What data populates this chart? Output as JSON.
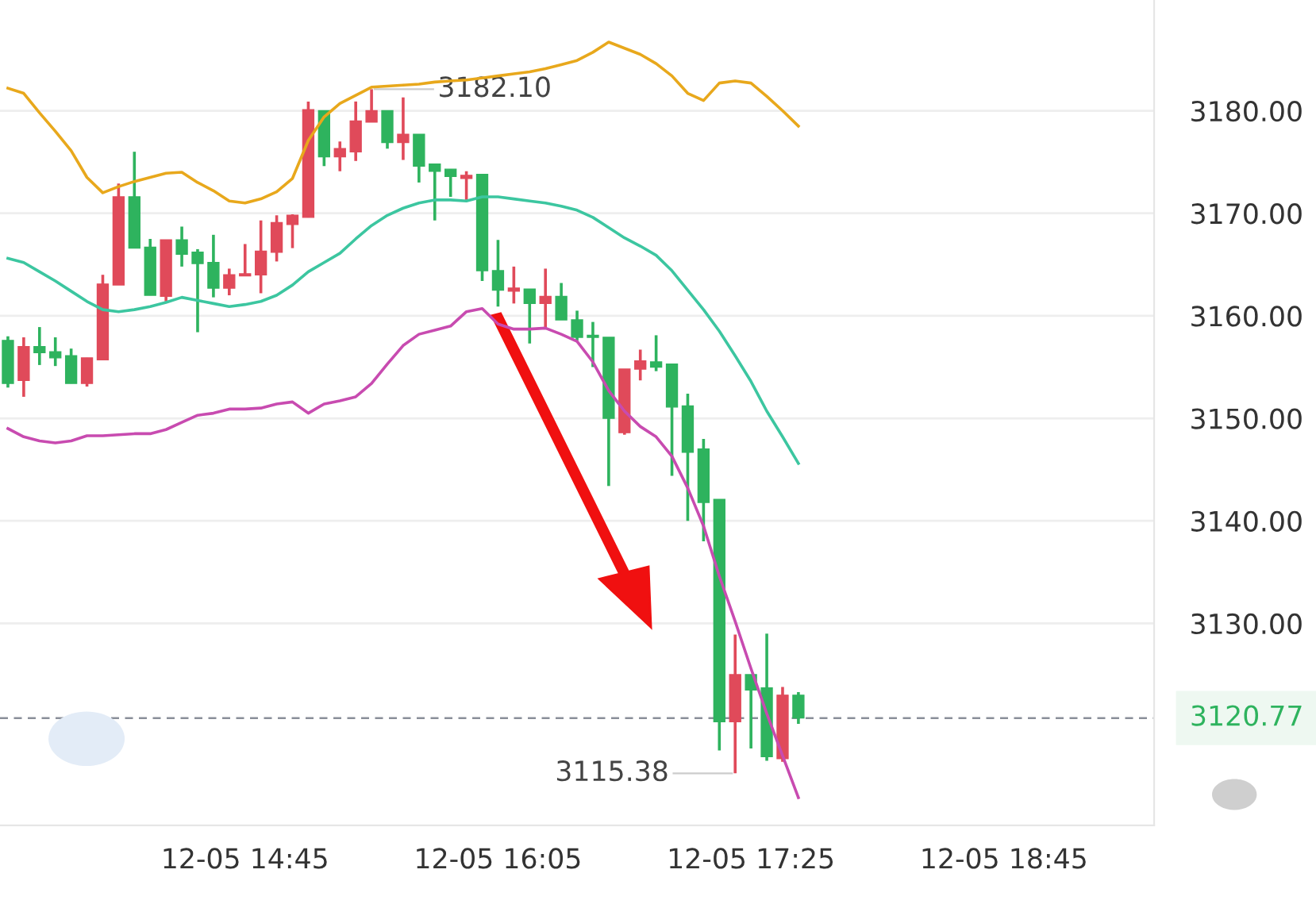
{
  "chart_data": {
    "type": "candlestick",
    "categories": [
      null,
      null,
      null,
      null,
      null,
      null,
      null,
      null,
      null,
      null,
      null,
      null,
      null,
      null,
      null,
      "12-05 14:45",
      null,
      null,
      null,
      null,
      null,
      null,
      null,
      null,
      null,
      null,
      null,
      null,
      null,
      null,
      null,
      "12-05 16:05",
      null,
      null,
      null,
      null,
      null,
      null,
      null,
      null,
      null,
      null,
      null,
      null,
      null,
      null,
      null,
      "12-05 17:25",
      null,
      null,
      null,
      null,
      null,
      null,
      null,
      null,
      null,
      null,
      null,
      null,
      null,
      null,
      null,
      "12-05 18:45",
      null,
      null,
      null,
      null,
      null,
      null,
      null,
      null,
      null
    ],
    "ohlc": [
      [
        3157.6,
        3158.0,
        3153.0,
        3153.4
      ],
      [
        3153.7,
        3157.9,
        3152.1,
        3157.0
      ],
      [
        3157.0,
        3158.9,
        3155.2,
        3156.4
      ],
      [
        3156.5,
        3157.9,
        3155.1,
        3155.9
      ],
      [
        3156.1,
        3156.8,
        3153.4,
        3153.4
      ],
      [
        3153.4,
        3155.9,
        3153.1,
        3155.9
      ],
      [
        3155.7,
        3164.0,
        3155.7,
        3163.1
      ],
      [
        3163.0,
        3172.9,
        3163.0,
        3171.6
      ],
      [
        3171.6,
        3176.0,
        3166.6,
        3166.6
      ],
      [
        3166.7,
        3167.5,
        3162.0,
        3162.0
      ],
      [
        3161.9,
        3167.4,
        3161.4,
        3167.4
      ],
      [
        3167.4,
        3168.7,
        3164.8,
        3166.0
      ],
      [
        3166.2,
        3166.5,
        3158.4,
        3165.1
      ],
      [
        3165.2,
        3167.9,
        3161.8,
        3162.7
      ],
      [
        3162.7,
        3164.6,
        3162.0,
        3164.0
      ],
      [
        3163.9,
        3167.0,
        3163.9,
        3164.1
      ],
      [
        3164.0,
        3169.3,
        3162.2,
        3166.3
      ],
      [
        3166.2,
        3169.8,
        3165.3,
        3169.1
      ],
      [
        3168.9,
        3169.9,
        3166.6,
        3169.8
      ],
      [
        3169.6,
        3180.9,
        3169.6,
        3180.1
      ],
      [
        3180.0,
        3180.0,
        3174.6,
        3175.5
      ],
      [
        3175.5,
        3177.0,
        3174.1,
        3176.3
      ],
      [
        3176.0,
        3180.9,
        3175.1,
        3179.0
      ],
      [
        3178.9,
        3182.1,
        3178.9,
        3180.0
      ],
      [
        3180.0,
        3180.0,
        3176.3,
        3176.9
      ],
      [
        3176.9,
        3181.3,
        3175.2,
        3177.7
      ],
      [
        3177.7,
        3177.7,
        3173.0,
        3174.6
      ],
      [
        3174.8,
        3174.8,
        3169.3,
        3174.1
      ],
      [
        3174.3,
        3174.3,
        3171.6,
        3173.6
      ],
      [
        3173.4,
        3174.1,
        3171.3,
        3173.7
      ],
      [
        3173.8,
        3173.8,
        3163.4,
        3164.4
      ],
      [
        3164.4,
        3167.4,
        3160.9,
        3162.5
      ],
      [
        3162.4,
        3164.8,
        3161.2,
        3162.7
      ],
      [
        3162.6,
        3162.6,
        3157.3,
        3161.2
      ],
      [
        3161.2,
        3164.6,
        3158.8,
        3161.9
      ],
      [
        3161.9,
        3163.2,
        3159.6,
        3159.6
      ],
      [
        3159.6,
        3160.5,
        3157.6,
        3157.9
      ],
      [
        3158.1,
        3159.4,
        3155.0,
        3157.9
      ],
      [
        3157.9,
        3157.9,
        3143.4,
        3150.0
      ],
      [
        3148.6,
        3154.8,
        3148.4,
        3154.8
      ],
      [
        3154.8,
        3156.7,
        3153.7,
        3155.6
      ],
      [
        3155.5,
        3158.1,
        3154.6,
        3155.0
      ],
      [
        3155.3,
        3155.3,
        3144.4,
        3151.1
      ],
      [
        3151.2,
        3152.4,
        3140.0,
        3146.7
      ],
      [
        3147.0,
        3148.0,
        3138.0,
        3141.8
      ],
      [
        3142.1,
        3142.1,
        3117.6,
        3120.4
      ],
      [
        3120.4,
        3128.9,
        3115.38,
        3125.0
      ],
      [
        3125.0,
        3125.0,
        3117.8,
        3123.5
      ],
      [
        3123.7,
        3129.0,
        3116.6,
        3117.0
      ],
      [
        3116.8,
        3123.8,
        3116.5,
        3123.0
      ],
      [
        3123.0,
        3123.3,
        3120.2,
        3120.77
      ],
      null,
      null,
      null,
      null,
      null,
      null,
      null,
      null,
      null,
      null,
      null,
      null,
      null,
      null,
      null,
      null,
      null,
      null,
      null,
      null,
      null,
      null
    ],
    "colors": [
      "#2eb35e",
      "#e04a5a",
      "#2eb35e",
      "#2eb35e",
      "#2eb35e",
      "#e04a5a",
      "#e04a5a",
      "#e04a5a",
      "#2eb35e",
      "#2eb35e",
      "#e04a5a",
      "#2eb35e",
      "#2eb35e",
      "#2eb35e",
      "#e04a5a",
      "#e04a5a",
      "#e04a5a",
      "#e04a5a",
      "#e04a5a",
      "#e04a5a",
      "#2eb35e",
      "#e04a5a",
      "#e04a5a",
      "#e04a5a",
      "#2eb35e",
      "#e04a5a",
      "#2eb35e",
      "#2eb35e",
      "#2eb35e",
      "#e04a5a",
      "#2eb35e",
      "#2eb35e",
      "#e04a5a",
      "#2eb35e",
      "#e04a5a",
      "#2eb35e",
      "#2eb35e",
      "#2eb35e",
      "#2eb35e",
      "#e04a5a",
      "#e04a5a",
      "#2eb35e",
      "#2eb35e",
      "#2eb35e",
      "#2eb35e",
      "#2eb35e",
      "#e04a5a",
      "#2eb35e",
      "#2eb35e",
      "#e04a5a",
      "#2eb35e",
      null,
      null,
      null,
      null,
      null,
      null,
      null,
      null,
      null,
      null,
      null,
      null,
      null,
      null,
      null,
      null,
      null,
      null,
      null,
      null,
      null,
      null
    ],
    "series": [
      {
        "type": "line",
        "color": "#e8a81c",
        "values": [
          3182.2,
          3181.7,
          3179.8,
          3178.0,
          3176.1,
          3173.5,
          3172.0,
          3172.6,
          3173.1,
          3173.5,
          3173.9,
          3174.0,
          3173.0,
          3172.2,
          3171.2,
          3171.0,
          3171.4,
          3172.1,
          3173.4,
          3177.1,
          3179.4,
          3180.7,
          3181.5,
          3182.3,
          3182.4,
          3182.5,
          3182.6,
          3182.8,
          3182.9,
          3183.0,
          3183.2,
          3183.4,
          3183.6,
          3183.8,
          3184.1,
          3184.5,
          3184.9,
          3185.7,
          3186.7,
          3186.1,
          3185.5,
          3184.6,
          3183.4,
          3181.7,
          3181.0,
          3182.7,
          3182.9,
          3182.7,
          3181.4,
          3180.0,
          3178.5,
          null,
          null,
          null,
          null,
          null,
          null,
          null,
          null,
          null,
          null,
          null,
          null,
          null,
          null,
          null,
          null,
          null,
          null,
          null,
          null,
          null,
          null
        ]
      },
      {
        "type": "line",
        "color": "#3cc6a0",
        "values": [
          3165.6,
          3165.2,
          3164.3,
          3163.4,
          3162.4,
          3161.4,
          3160.6,
          3160.4,
          3160.6,
          3160.9,
          3161.3,
          3161.8,
          3161.5,
          3161.2,
          3160.9,
          3161.1,
          3161.4,
          3162.0,
          3163.0,
          3164.3,
          3165.2,
          3166.1,
          3167.5,
          3168.8,
          3169.8,
          3170.5,
          3171.0,
          3171.3,
          3171.3,
          3171.2,
          3171.6,
          3171.6,
          3171.4,
          3171.2,
          3171.0,
          3170.7,
          3170.3,
          3169.6,
          3168.6,
          3167.6,
          3166.8,
          3165.9,
          3164.4,
          3162.5,
          3160.6,
          3158.5,
          3156.1,
          3153.6,
          3150.7,
          3148.2,
          3145.6,
          null,
          null,
          null,
          null,
          null,
          null,
          null,
          null,
          null,
          null,
          null,
          null,
          null,
          null,
          null,
          null,
          null,
          null,
          null,
          null,
          null,
          null
        ]
      },
      {
        "type": "line",
        "color": "#c84bb0",
        "values": [
          3149.0,
          3148.2,
          3147.8,
          3147.6,
          3147.8,
          3148.3,
          3148.3,
          3148.4,
          3148.5,
          3148.5,
          3148.9,
          3149.6,
          3150.3,
          3150.5,
          3150.9,
          3150.9,
          3151.0,
          3151.4,
          3151.6,
          3150.5,
          3151.4,
          3151.7,
          3152.1,
          3153.4,
          3155.3,
          3157.1,
          3158.2,
          3158.6,
          3159.0,
          3160.4,
          3160.7,
          3159.2,
          3158.7,
          3158.7,
          3158.8,
          3158.2,
          3157.5,
          3155.5,
          3152.7,
          3150.7,
          3149.2,
          3148.2,
          3146.3,
          3143.2,
          3139.5,
          3134.6,
          3130.2,
          3125.6,
          3121.2,
          3117.1,
          3113.0,
          null,
          null,
          null,
          null,
          null,
          null,
          null,
          null,
          null,
          null,
          null,
          null,
          null,
          null,
          null,
          null,
          null,
          null,
          null,
          null,
          null,
          null
        ]
      }
    ],
    "ylim": [
      3110.3,
      3190.8
    ],
    "yticks": [
      {
        "value": 3130,
        "label": "3130.00"
      },
      {
        "value": 3140,
        "label": "3140.00"
      },
      {
        "value": 3150,
        "label": "3150.00"
      },
      {
        "value": 3160,
        "label": "3160.00"
      },
      {
        "value": 3170,
        "label": "3170.00"
      },
      {
        "value": 3180,
        "label": "3180.00"
      }
    ],
    "grid": "y",
    "ref_lines": [
      {
        "axis": "y",
        "value": 3120.77,
        "label": "3120.77",
        "color": "#8a8f99",
        "line_style": "dashed"
      }
    ],
    "annotations": [
      "3182.10",
      "3115.38"
    ]
  }
}
